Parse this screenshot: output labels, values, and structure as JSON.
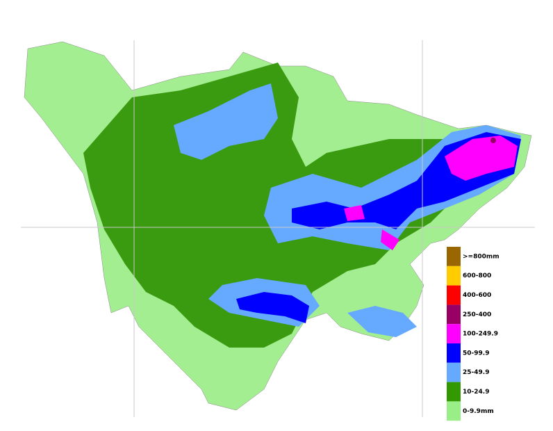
{
  "legend": {
    "items": [
      {
        "label": ">=800mm",
        "color": "#996600"
      },
      {
        "label": "600-800",
        "color": "#ffcc00"
      },
      {
        "label": "400-600",
        "color": "#ff0000"
      },
      {
        "label": "250-400",
        "color": "#990066"
      },
      {
        "label": "100-249.9",
        "color": "#ff00ff"
      },
      {
        "label": "50-99.9",
        "color": "#0000ff"
      },
      {
        "label": "25-49.9",
        "color": "#66aaff"
      },
      {
        "label": "10-24.9",
        "color": "#339900"
      },
      {
        "label": "0-9.9mm",
        "color": "#99ee88"
      }
    ]
  }
}
